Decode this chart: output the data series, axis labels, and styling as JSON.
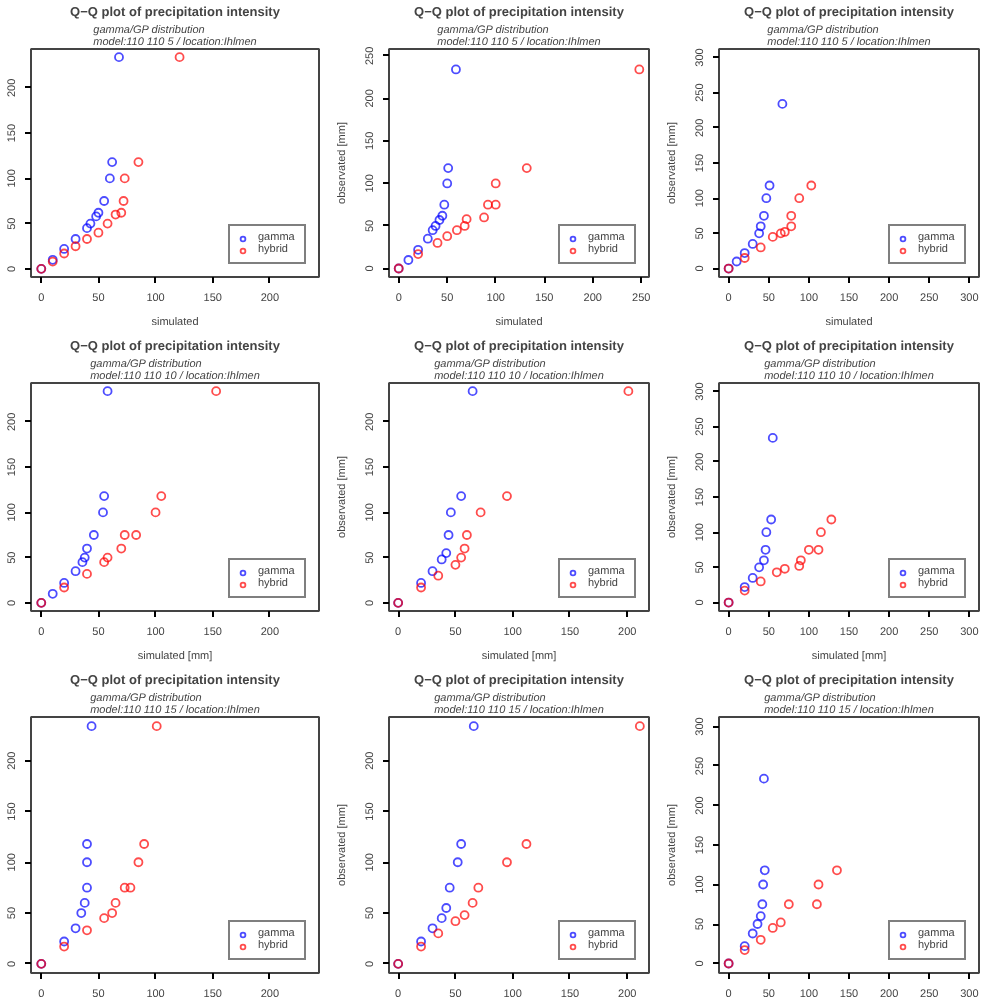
{
  "chart_data": [
    {
      "type": "scatter",
      "title": "Q−Q plot of precipitation intensity",
      "subtitle": "gamma/GP distribution\nmodel:110 110 5 / location:Ihlmen",
      "xlabel": "simulated",
      "xlim": [
        -9,
        243
      ],
      "ylim": [
        -9,
        243
      ],
      "xticks": [
        0,
        50,
        100,
        150,
        200
      ],
      "yticks": [
        0,
        50,
        100,
        150,
        200
      ],
      "marker": "circle",
      "legend": "bottom right",
      "grid": false,
      "series": [
        {
          "name": "gamma",
          "color": "#0000ff",
          "x": [
            0,
            10,
            20,
            30,
            40,
            43,
            48,
            50,
            55,
            60,
            62,
            68
          ],
          "values": [
            0,
            10,
            22,
            33,
            45,
            50,
            58,
            62,
            75,
            100,
            118,
            234
          ]
        },
        {
          "name": "hybrid",
          "color": "#ff0000",
          "x": [
            0,
            10,
            20,
            30,
            40,
            50,
            58,
            65,
            70,
            72,
            73,
            85,
            121
          ],
          "values": [
            0,
            8,
            17,
            25,
            33,
            40,
            50,
            60,
            62,
            75,
            100,
            118,
            234
          ]
        }
      ]
    },
    {
      "type": "scatter",
      "title": "Q−Q plot of precipitation intensity",
      "subtitle": "gamma/GP distribution\nmodel:110 110 5 / location:Ihlmen",
      "xlabel": "simulated",
      "ylabel": "observated [mm]",
      "xlim": [
        -10,
        258
      ],
      "ylim": [
        -10,
        258
      ],
      "xticks": [
        0,
        50,
        100,
        150,
        200,
        250
      ],
      "yticks": [
        0,
        50,
        100,
        150,
        200,
        250
      ],
      "marker": "circle",
      "legend": "bottom right",
      "grid": false,
      "series": [
        {
          "name": "gamma",
          "color": "#0000ff",
          "x": [
            0,
            10,
            20,
            30,
            35,
            38,
            42,
            45,
            47,
            50,
            51,
            59
          ],
          "values": [
            0,
            10,
            22,
            35,
            45,
            50,
            57,
            62,
            75,
            100,
            118,
            234
          ]
        },
        {
          "name": "hybrid",
          "color": "#ff0000",
          "x": [
            0,
            20,
            40,
            50,
            60,
            68,
            70,
            88,
            92,
            100,
            100,
            132,
            248
          ],
          "values": [
            0,
            17,
            30,
            38,
            45,
            50,
            58,
            60,
            75,
            75,
            100,
            118,
            234
          ]
        }
      ]
    },
    {
      "type": "scatter",
      "title": "Q−Q plot of precipitation intensity",
      "subtitle": "gamma/GP distribution\nmodel:110 110 5 / location:Ihlmen",
      "xlabel": "simulated",
      "ylabel": "observated [mm]",
      "xlim": [
        -12,
        312
      ],
      "ylim": [
        -12,
        312
      ],
      "xticks": [
        0,
        50,
        100,
        150,
        200,
        250,
        300
      ],
      "yticks": [
        0,
        50,
        100,
        150,
        200,
        250,
        300
      ],
      "marker": "circle",
      "legend": "bottom right",
      "grid": false,
      "series": [
        {
          "name": "gamma",
          "color": "#0000ff",
          "x": [
            0,
            10,
            20,
            30,
            38,
            40,
            44,
            47,
            51,
            67
          ],
          "values": [
            0,
            10,
            22,
            35,
            50,
            60,
            75,
            100,
            118,
            234
          ]
        },
        {
          "name": "hybrid",
          "color": "#ff0000",
          "x": [
            0,
            20,
            40,
            55,
            65,
            70,
            78,
            78,
            88,
            103
          ],
          "values": [
            0,
            15,
            30,
            45,
            50,
            52,
            60,
            75,
            100,
            118
          ]
        }
      ]
    },
    {
      "type": "scatter",
      "title": "Q−Q plot of precipitation intensity",
      "subtitle": "gamma/GP distribution\nmodel:110 110 10 / location:Ihlmen",
      "xlabel": "simulated [mm]",
      "xlim": [
        -9,
        243
      ],
      "ylim": [
        -9,
        243
      ],
      "xticks": [
        0,
        50,
        100,
        150,
        200
      ],
      "yticks": [
        0,
        50,
        100,
        150,
        200
      ],
      "marker": "circle",
      "legend": "bottom right",
      "grid": false,
      "series": [
        {
          "name": "gamma",
          "color": "#0000ff",
          "x": [
            0,
            10,
            20,
            30,
            36,
            38,
            40,
            46,
            54,
            55,
            58
          ],
          "values": [
            0,
            10,
            22,
            35,
            45,
            50,
            60,
            75,
            100,
            118,
            234
          ]
        },
        {
          "name": "hybrid",
          "color": "#ff0000",
          "x": [
            0,
            20,
            40,
            55,
            58,
            70,
            73,
            83,
            100,
            105,
            153
          ],
          "values": [
            0,
            17,
            32,
            45,
            50,
            60,
            75,
            75,
            100,
            118,
            234
          ]
        }
      ]
    },
    {
      "type": "scatter",
      "title": "Q−Q plot of precipitation intensity",
      "subtitle": "gamma/GP distribution\nmodel:110 110 10 / location:Ihlmen",
      "xlabel": "simulated [mm]",
      "ylabel": "observated [mm]",
      "xlim": [
        -8,
        219
      ],
      "ylim": [
        -9,
        243
      ],
      "xticks": [
        0,
        50,
        100,
        150,
        200
      ],
      "yticks": [
        0,
        50,
        100,
        150,
        200
      ],
      "marker": "circle",
      "legend": "bottom right",
      "grid": false,
      "series": [
        {
          "name": "gamma",
          "color": "#0000ff",
          "x": [
            0,
            20,
            30,
            38,
            42,
            44,
            46,
            55,
            65
          ],
          "values": [
            0,
            22,
            35,
            48,
            55,
            75,
            100,
            118,
            234
          ]
        },
        {
          "name": "hybrid",
          "color": "#ff0000",
          "x": [
            0,
            20,
            35,
            50,
            55,
            58,
            60,
            72,
            95,
            201
          ],
          "values": [
            0,
            17,
            30,
            42,
            50,
            60,
            75,
            100,
            118,
            234
          ]
        }
      ]
    },
    {
      "type": "scatter",
      "title": "Q−Q plot of precipitation intensity",
      "subtitle": "gamma/GP distribution\nmodel:110 110 10 / location:Ihlmen",
      "xlabel": "simulated [mm]",
      "ylabel": "observated [mm]",
      "xlim": [
        -12,
        312
      ],
      "ylim": [
        -12,
        312
      ],
      "xticks": [
        0,
        50,
        100,
        150,
        200,
        250,
        300
      ],
      "yticks": [
        0,
        50,
        100,
        150,
        200,
        250,
        300
      ],
      "marker": "circle",
      "legend": "bottom right",
      "grid": false,
      "series": [
        {
          "name": "gamma",
          "color": "#0000ff",
          "x": [
            0,
            20,
            30,
            38,
            44,
            46,
            47,
            53,
            55
          ],
          "values": [
            0,
            22,
            35,
            50,
            60,
            75,
            100,
            118,
            234
          ]
        },
        {
          "name": "hybrid",
          "color": "#ff0000",
          "x": [
            0,
            20,
            40,
            60,
            70,
            88,
            90,
            100,
            112,
            115,
            128
          ],
          "values": [
            0,
            17,
            30,
            43,
            48,
            52,
            60,
            75,
            75,
            100,
            118
          ]
        }
      ]
    },
    {
      "type": "scatter",
      "title": "Q−Q plot of precipitation intensity",
      "subtitle": "gamma/GP distribution\nmodel:110 110 15 / location:Ihlmen",
      "xlim": [
        -9,
        243
      ],
      "ylim": [
        -9,
        243
      ],
      "xticks": [
        0,
        50,
        100,
        150,
        200
      ],
      "yticks": [
        0,
        50,
        100,
        150,
        200
      ],
      "marker": "circle",
      "legend": "bottom right",
      "grid": false,
      "series": [
        {
          "name": "gamma",
          "color": "#0000ff",
          "x": [
            0,
            20,
            30,
            35,
            38,
            40,
            40,
            40,
            44
          ],
          "values": [
            0,
            22,
            35,
            50,
            60,
            75,
            100,
            118,
            234
          ]
        },
        {
          "name": "hybrid",
          "color": "#ff0000",
          "x": [
            0,
            20,
            40,
            55,
            62,
            65,
            73,
            78,
            85,
            90,
            101
          ],
          "values": [
            0,
            17,
            33,
            45,
            50,
            60,
            75,
            75,
            100,
            118,
            234
          ]
        }
      ]
    },
    {
      "type": "scatter",
      "title": "Q−Q plot of precipitation intensity",
      "subtitle": "gamma/GP distribution\nmodel:110 110 15 / location:Ihlmen",
      "ylabel": "observated [mm]",
      "xlim": [
        -8,
        219
      ],
      "ylim": [
        -9,
        243
      ],
      "xticks": [
        0,
        50,
        100,
        150,
        200
      ],
      "yticks": [
        0,
        50,
        100,
        150,
        200
      ],
      "marker": "circle",
      "legend": "bottom right",
      "grid": false,
      "series": [
        {
          "name": "gamma",
          "color": "#0000ff",
          "x": [
            0,
            20,
            30,
            38,
            42,
            45,
            52,
            55,
            66
          ],
          "values": [
            0,
            22,
            35,
            45,
            55,
            75,
            100,
            118,
            234
          ]
        },
        {
          "name": "hybrid",
          "color": "#ff0000",
          "x": [
            0,
            20,
            35,
            50,
            58,
            65,
            70,
            95,
            112,
            211
          ],
          "values": [
            0,
            17,
            30,
            42,
            48,
            60,
            75,
            100,
            118,
            234
          ]
        }
      ]
    },
    {
      "type": "scatter",
      "title": "Q−Q plot of precipitation intensity",
      "subtitle": "gamma/GP distribution\nmodel:110 110 15 / location:Ihlmen",
      "ylabel": "observated [mm]",
      "xlim": [
        -12,
        312
      ],
      "ylim": [
        -12,
        312
      ],
      "xticks": [
        0,
        50,
        100,
        150,
        200,
        250,
        300
      ],
      "yticks": [
        0,
        50,
        100,
        150,
        200,
        250,
        300
      ],
      "marker": "circle",
      "legend": "bottom right",
      "grid": false,
      "series": [
        {
          "name": "gamma",
          "color": "#0000ff",
          "x": [
            0,
            20,
            30,
            36,
            40,
            42,
            43,
            45,
            44
          ],
          "values": [
            0,
            22,
            38,
            50,
            60,
            75,
            100,
            118,
            234
          ]
        },
        {
          "name": "hybrid",
          "color": "#ff0000",
          "x": [
            0,
            20,
            40,
            55,
            65,
            75,
            110,
            112,
            135
          ],
          "values": [
            0,
            17,
            30,
            45,
            52,
            75,
            75,
            100,
            118
          ]
        }
      ]
    }
  ]
}
